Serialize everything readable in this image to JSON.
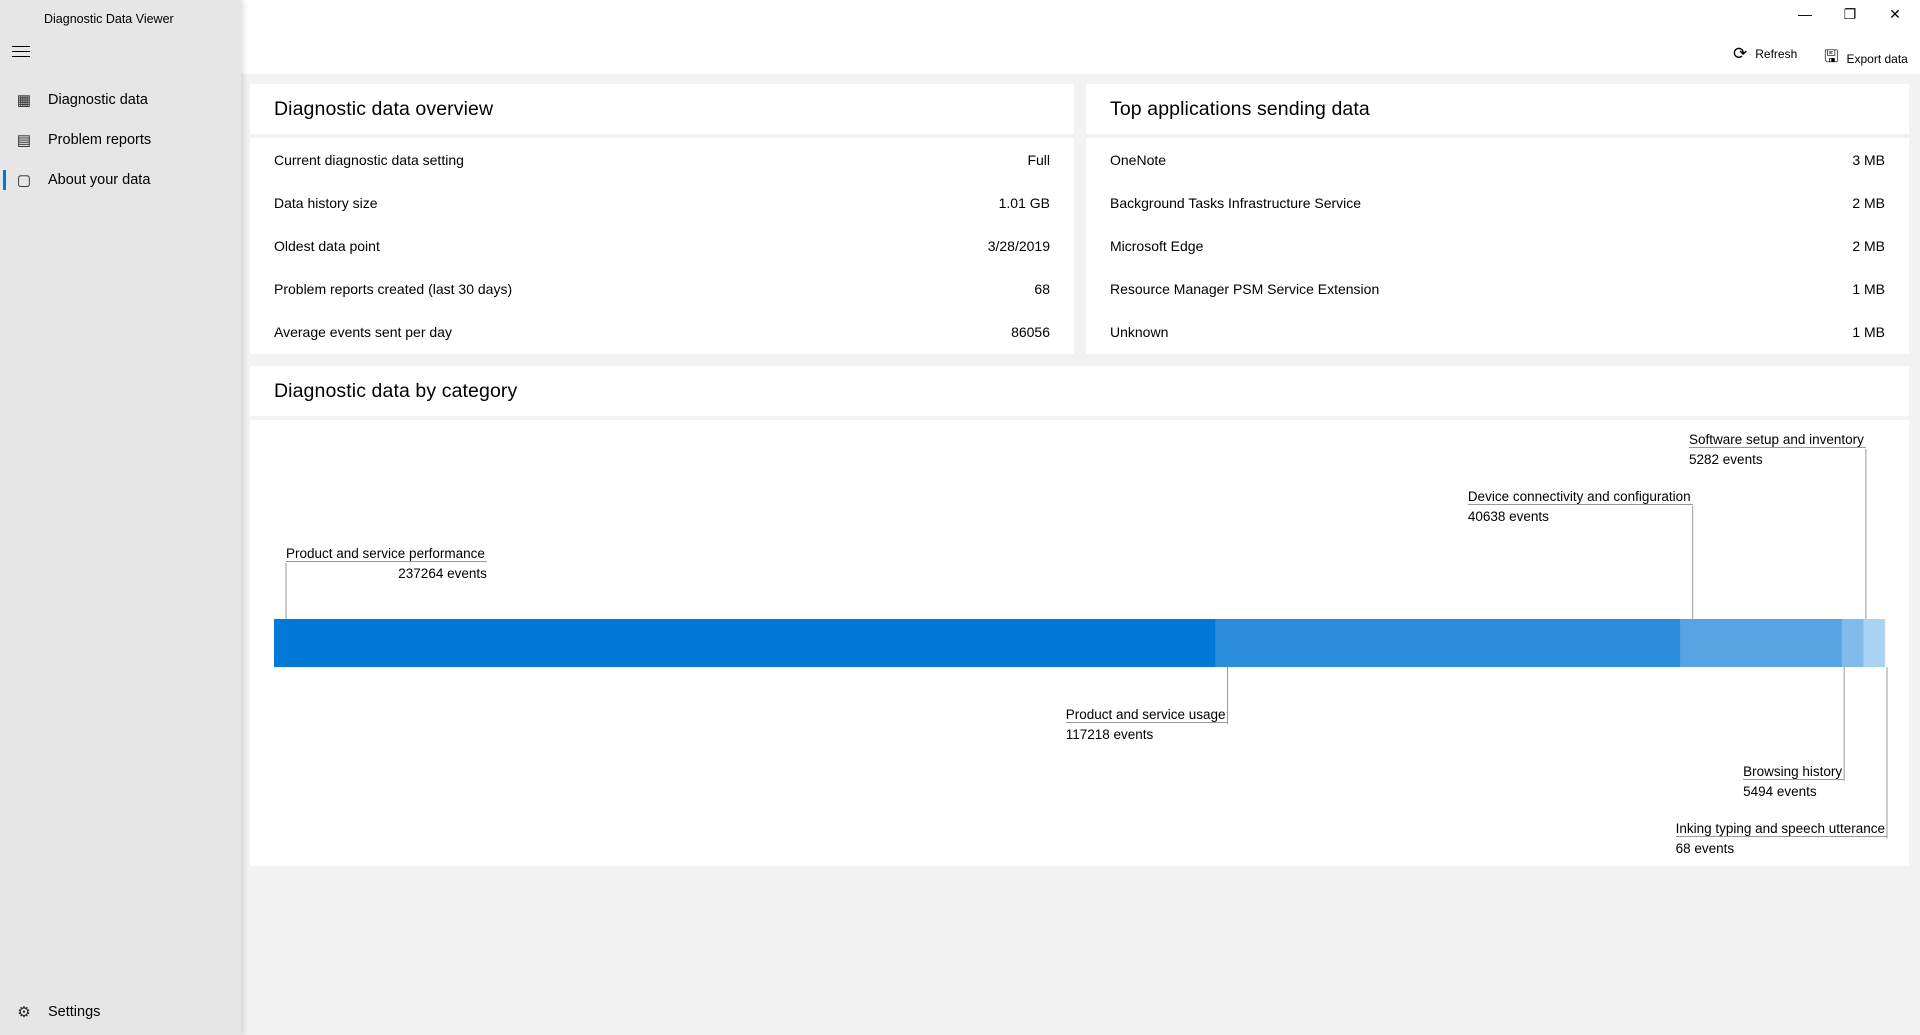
{
  "app_title": "Diagnostic Data Viewer",
  "sidebar": {
    "items": [
      {
        "label": "Diagnostic data",
        "icon": "diagnostic-data-icon"
      },
      {
        "label": "Problem reports",
        "icon": "problem-reports-icon"
      },
      {
        "label": "About your data",
        "icon": "chart-icon",
        "active": true
      }
    ],
    "settings": "Settings"
  },
  "toolbar": {
    "refresh": "Refresh",
    "export": "Export data"
  },
  "overview": {
    "title": "Diagnostic data overview",
    "rows": [
      {
        "label": "Current diagnostic data setting",
        "value": "Full"
      },
      {
        "label": "Data history size",
        "value": "1.01 GB"
      },
      {
        "label": "Oldest data point",
        "value": "3/28/2019"
      },
      {
        "label": "Problem reports created (last 30 days)",
        "value": "68"
      },
      {
        "label": "Average events sent per day",
        "value": "86056"
      }
    ]
  },
  "top_apps": {
    "title": "Top applications sending data",
    "rows": [
      {
        "label": "OneNote",
        "value": "3 MB"
      },
      {
        "label": "Background Tasks Infrastructure Service",
        "value": "2 MB"
      },
      {
        "label": "Microsoft Edge",
        "value": "2 MB"
      },
      {
        "label": "Resource Manager PSM Service Extension",
        "value": "1 MB"
      },
      {
        "label": "Unknown",
        "value": "1 MB"
      }
    ]
  },
  "category": {
    "title": "Diagnostic data by category"
  },
  "chart_data": {
    "type": "bar",
    "orientation": "stacked-horizontal",
    "categories": [
      "Product and service performance",
      "Product and service usage",
      "Device connectivity and configuration",
      "Browsing history",
      "Software setup and inventory",
      "Inking typing and speech utterance"
    ],
    "values": [
      237264,
      117218,
      40638,
      5494,
      5282,
      68
    ],
    "labels": [
      "237264 events",
      "117218 events",
      "40638 events",
      "5494 events",
      "5282 events",
      "68 events"
    ],
    "colors": [
      "#0078d7",
      "#2b8edc",
      "#56a5e2",
      "#80bbea",
      "#aad2f2",
      "#aad2f2"
    ]
  }
}
